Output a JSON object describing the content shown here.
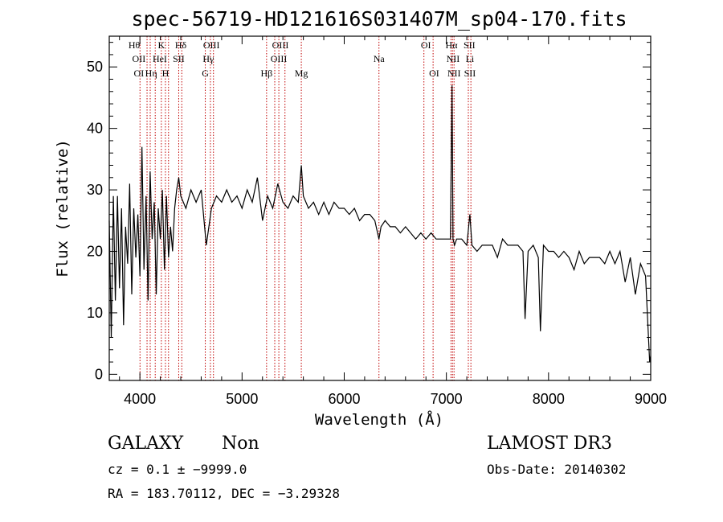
{
  "chart_data": {
    "type": "line",
    "title": "spec-56719-HD121616S031407M_sp04-170.fits",
    "xlabel": "Wavelength (Å)",
    "ylabel": "Flux (relative)",
    "xlim": [
      3700,
      9000
    ],
    "ylim": [
      -1,
      55
    ],
    "x_ticks": [
      4000,
      5000,
      6000,
      7000,
      8000,
      9000
    ],
    "y_ticks": [
      0,
      10,
      20,
      30,
      40,
      50
    ],
    "spectrum": {
      "x": [
        3700,
        3720,
        3740,
        3760,
        3780,
        3800,
        3820,
        3840,
        3860,
        3880,
        3900,
        3920,
        3940,
        3960,
        3980,
        4000,
        4020,
        4040,
        4060,
        4080,
        4100,
        4120,
        4140,
        4160,
        4180,
        4200,
        4220,
        4240,
        4260,
        4280,
        4300,
        4320,
        4340,
        4360,
        4380,
        4400,
        4450,
        4500,
        4550,
        4600,
        4650,
        4700,
        4750,
        4800,
        4850,
        4900,
        4950,
        5000,
        5050,
        5100,
        5150,
        5200,
        5250,
        5300,
        5350,
        5400,
        5450,
        5500,
        5550,
        5580,
        5600,
        5650,
        5700,
        5750,
        5800,
        5850,
        5900,
        5950,
        6000,
        6050,
        6100,
        6150,
        6200,
        6250,
        6300,
        6340,
        6360,
        6400,
        6450,
        6500,
        6550,
        6600,
        6650,
        6700,
        6750,
        6800,
        6850,
        6900,
        6950,
        7000,
        7040,
        7055,
        7065,
        7080,
        7100,
        7150,
        7200,
        7230,
        7250,
        7300,
        7350,
        7400,
        7450,
        7500,
        7550,
        7600,
        7650,
        7700,
        7750,
        7770,
        7800,
        7850,
        7900,
        7920,
        7950,
        8000,
        8050,
        8100,
        8150,
        8200,
        8250,
        8300,
        8350,
        8400,
        8450,
        8500,
        8550,
        8600,
        8650,
        8700,
        8750,
        8800,
        8850,
        8900,
        8950,
        8990,
        9000
      ],
      "y": [
        25,
        6,
        29,
        12,
        29,
        14,
        27,
        8,
        24,
        18,
        31,
        13,
        27,
        19,
        26,
        16,
        37,
        17,
        29,
        12,
        33,
        22,
        28,
        13,
        27,
        22,
        30,
        17,
        29,
        19,
        24,
        20,
        27,
        30,
        32,
        29,
        27,
        30,
        28,
        30,
        21,
        27,
        29,
        28,
        30,
        28,
        29,
        27,
        30,
        28,
        32,
        25,
        29,
        27,
        31,
        28,
        27,
        29,
        28,
        34,
        29,
        27,
        28,
        26,
        28,
        26,
        28,
        27,
        27,
        26,
        27,
        25,
        26,
        26,
        25,
        22,
        24,
        25,
        24,
        24,
        23,
        24,
        23,
        22,
        23,
        22,
        23,
        22,
        22,
        22,
        22,
        47,
        22,
        21,
        22,
        22,
        21,
        26,
        21,
        20,
        21,
        21,
        21,
        19,
        22,
        21,
        21,
        21,
        20,
        9,
        20,
        21,
        19,
        7,
        21,
        20,
        20,
        19,
        20,
        19,
        17,
        20,
        18,
        19,
        19,
        19,
        18,
        20,
        18,
        20,
        15,
        19,
        13,
        18,
        16,
        2,
        3
      ]
    },
    "spectral_lines": [
      {
        "name": "Hθ",
        "wavelength": 4001,
        "row": 0,
        "align": "end"
      },
      {
        "name": "K",
        "wavelength": 4210,
        "row": 0,
        "align": "middle"
      },
      {
        "name": "Hδ",
        "wavelength": 4400,
        "row": 0,
        "align": "middle"
      },
      {
        "name": "OIII",
        "wavelength": 4700,
        "row": 0,
        "align": "middle"
      },
      {
        "name": "OIII",
        "wavelength": 5375,
        "row": 0,
        "align": "middle"
      },
      {
        "name": "OI",
        "wavelength": 6800,
        "row": 0,
        "align": "middle"
      },
      {
        "name": "Hα",
        "wavelength": 7050,
        "row": 0,
        "align": "middle"
      },
      {
        "name": "SII",
        "wavelength": 7225,
        "row": 0,
        "align": "middle"
      },
      {
        "name": "OII",
        "wavelength": 3990,
        "row": 1,
        "align": "middle"
      },
      {
        "name": "HeI",
        "wavelength": 4195,
        "row": 1,
        "align": "middle"
      },
      {
        "name": "SII",
        "wavelength": 4380,
        "row": 1,
        "align": "middle"
      },
      {
        "name": "Hγ",
        "wavelength": 4670,
        "row": 1,
        "align": "middle"
      },
      {
        "name": "OIII",
        "wavelength": 5360,
        "row": 1,
        "align": "middle"
      },
      {
        "name": "Na",
        "wavelength": 6340,
        "row": 1,
        "align": "middle"
      },
      {
        "name": "NII",
        "wavelength": 7065,
        "row": 1,
        "align": "middle"
      },
      {
        "name": "Li",
        "wavelength": 7230,
        "row": 1,
        "align": "middle"
      },
      {
        "name": "OI",
        "wavelength": 3990,
        "row": 2,
        "align": "middle"
      },
      {
        "name": "Hη",
        "wavelength": 4110,
        "row": 2,
        "align": "middle"
      },
      {
        "name": "H",
        "wavelength": 4250,
        "row": 2,
        "align": "middle"
      },
      {
        "name": "G",
        "wavelength": 4640,
        "row": 2,
        "align": "middle"
      },
      {
        "name": "Hβ",
        "wavelength": 5240,
        "row": 2,
        "align": "middle"
      },
      {
        "name": "Mg",
        "wavelength": 5580,
        "row": 2,
        "align": "middle"
      },
      {
        "name": "OI",
        "wavelength": 6880,
        "row": 2,
        "align": "middle"
      },
      {
        "name": "NII",
        "wavelength": 7075,
        "row": 2,
        "align": "middle"
      },
      {
        "name": "SII",
        "wavelength": 7230,
        "row": 2,
        "align": "middle"
      }
    ],
    "line_markers": [
      4001,
      4070,
      4101,
      4150,
      4210,
      4250,
      4280,
      4380,
      4410,
      4640,
      4690,
      4720,
      5240,
      5320,
      5360,
      5420,
      5580,
      6340,
      6780,
      6870,
      7045,
      7060,
      7075,
      7215,
      7240
    ]
  },
  "info": {
    "class": "GALAXY",
    "subclass": "Non",
    "survey": "LAMOST DR3",
    "cz": "cz = 0.1 ± −9999.0",
    "obs_date": "Obs-Date: 20140302",
    "coords": "RA = 183.70112, DEC =  −3.29328"
  },
  "colors": {
    "marker": "#c00000",
    "spectrum": "#000000",
    "axis": "#000000"
  }
}
